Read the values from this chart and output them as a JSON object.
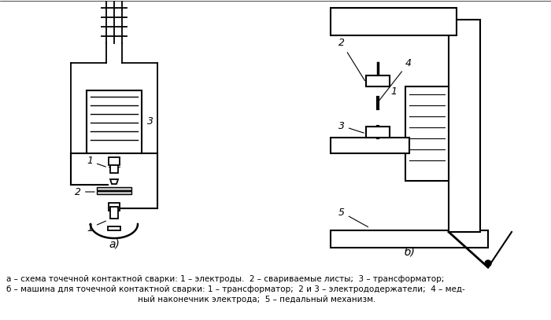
{
  "background_color": "#ffffff",
  "caption_line1": "а – схема точечной контактной сварки: 1 – электроды.  2 – свариваемые листы;  3 – трансформатор;",
  "caption_line2": "б – машина для точечной контактной сварки: 1 – трансформатор;  2 и 3 – электрододержатели;  4 – мед-",
  "caption_line3": "ный наконечник электрода;  5 – педальный механизм.",
  "figsize": [
    7.0,
    4.07
  ],
  "dpi": 100
}
